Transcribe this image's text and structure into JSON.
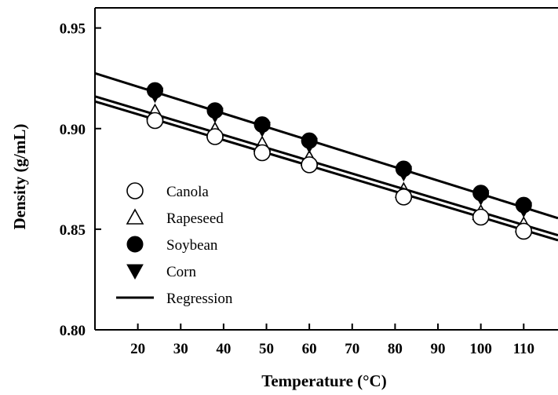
{
  "chart_data": {
    "type": "scatter",
    "xlabel": "Temperature (°C)",
    "ylabel": "Density (g/mL)",
    "xlim": [
      10,
      118
    ],
    "ylim": [
      0.8,
      0.96
    ],
    "xticks": [
      20,
      30,
      40,
      50,
      60,
      70,
      80,
      90,
      100,
      110
    ],
    "yticks": [
      0.8,
      0.85,
      0.9,
      0.95
    ],
    "ytick_labels": [
      "0.80",
      "0.85",
      "0.90",
      "0.95"
    ],
    "legend_position": "lower-left",
    "series": [
      {
        "name": "Canola",
        "marker": "open-circle",
        "x": [
          24,
          38,
          49,
          60,
          82,
          100,
          110
        ],
        "y": [
          0.904,
          0.896,
          0.888,
          0.882,
          0.866,
          0.856,
          0.849
        ]
      },
      {
        "name": "Rapeseed",
        "marker": "open-triangle",
        "x": [
          24,
          38,
          49,
          60,
          82,
          100,
          110
        ],
        "y": [
          0.908,
          0.899,
          0.892,
          0.885,
          0.869,
          0.858,
          0.852
        ]
      },
      {
        "name": "Soybean",
        "marker": "filled-circle",
        "x": [
          24,
          38,
          49,
          60,
          82,
          100,
          110
        ],
        "y": [
          0.919,
          0.909,
          0.902,
          0.894,
          0.88,
          0.868,
          0.862
        ]
      },
      {
        "name": "Corn",
        "marker": "filled-triangle",
        "x": [
          24,
          38,
          49,
          60,
          82,
          100,
          110
        ],
        "y": [
          0.917,
          0.907,
          0.9,
          0.892,
          0.878,
          0.866,
          0.86
        ]
      }
    ],
    "regression_lines": [
      {
        "name": "Regression",
        "x": [
          10,
          118
        ],
        "y": [
          0.9275,
          0.8555
        ]
      },
      {
        "x": [
          10,
          118
        ],
        "y": [
          0.916,
          0.847
        ]
      },
      {
        "x": [
          10,
          118
        ],
        "y": [
          0.9135,
          0.8445
        ]
      }
    ],
    "legend": [
      {
        "label": "Canola",
        "marker": "open-circle"
      },
      {
        "label": "Rapeseed",
        "marker": "open-triangle"
      },
      {
        "label": "Soybean",
        "marker": "filled-circle"
      },
      {
        "label": "Corn",
        "marker": "filled-triangle"
      },
      {
        "label": "Regression",
        "marker": "line"
      }
    ]
  }
}
